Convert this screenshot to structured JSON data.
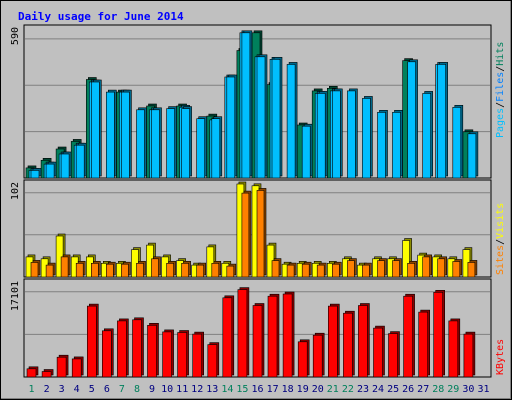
{
  "chart_data": [
    {
      "type": "bar",
      "title": "Daily usage for June 2014",
      "categories": [
        "1",
        "2",
        "3",
        "4",
        "5",
        "6",
        "7",
        "8",
        "9",
        "10",
        "11",
        "12",
        "13",
        "14",
        "15",
        "16",
        "17",
        "18",
        "19",
        "20",
        "21",
        "22",
        "23",
        "24",
        "25",
        "26",
        "27",
        "28",
        "29",
        "30",
        "31"
      ],
      "weekend_days": [
        "1",
        "7",
        "8",
        "14",
        "15",
        "21",
        "22",
        "28",
        "29"
      ],
      "ylabel_segments": [
        "Pages",
        "/",
        "Files",
        "/",
        "Hits"
      ],
      "ytick_label": "590",
      "ylim": [
        0,
        590
      ],
      "grid": true,
      "series": [
        {
          "name": "Hits",
          "color": "#00805c",
          "values": [
            40,
            70,
            115,
            145,
            390,
            0,
            340,
            0,
            285,
            0,
            285,
            0,
            245,
            0,
            505,
            575,
            370,
            0,
            210,
            345,
            355,
            0,
            0,
            0,
            0,
            465,
            0,
            0,
            0,
            183,
            0
          ]
        },
        {
          "name": "Files",
          "color": "#00bfff",
          "values": [
            30,
            55,
            95,
            130,
            380,
            0,
            340,
            0,
            270,
            0,
            280,
            0,
            230,
            400,
            575,
            480,
            470,
            0,
            0,
            335,
            345,
            0,
            0,
            0,
            0,
            0,
            0,
            450,
            0,
            0,
            0
          ]
        },
        {
          "name": "Pages",
          "color": "#00bfff",
          "values": [
            30,
            55,
            95,
            130,
            380,
            340,
            340,
            270,
            270,
            275,
            275,
            235,
            235,
            400,
            575,
            480,
            470,
            450,
            205,
            335,
            345,
            345,
            315,
            260,
            260,
            460,
            335,
            450,
            280,
            175,
            0
          ]
        }
      ]
    },
    {
      "type": "bar",
      "categories": [
        "1",
        "2",
        "3",
        "4",
        "5",
        "6",
        "7",
        "8",
        "9",
        "10",
        "11",
        "12",
        "13",
        "14",
        "15",
        "16",
        "17",
        "18",
        "19",
        "20",
        "21",
        "22",
        "23",
        "24",
        "25",
        "26",
        "27",
        "28",
        "29",
        "30",
        "31"
      ],
      "ylabel_segments": [
        "Sites",
        "/",
        "Visits"
      ],
      "ytick_label": "102",
      "ylim": [
        0,
        102
      ],
      "grid": true,
      "series": [
        {
          "name": "Visits",
          "color": "#ffff00",
          "values": [
            22,
            20,
            45,
            22,
            22,
            15,
            15,
            30,
            35,
            22,
            18,
            13,
            33,
            15,
            102,
            100,
            35,
            14,
            15,
            15,
            15,
            20,
            13,
            20,
            20,
            40,
            24,
            22,
            20,
            30,
            0
          ]
        },
        {
          "name": "Sites",
          "color": "#ff8000",
          "values": [
            16,
            13,
            22,
            15,
            15,
            14,
            14,
            15,
            20,
            15,
            15,
            13,
            15,
            12,
            92,
            95,
            18,
            13,
            14,
            13,
            14,
            18,
            13,
            18,
            18,
            15,
            22,
            20,
            17,
            16,
            0
          ]
        }
      ]
    },
    {
      "type": "bar",
      "categories": [
        "1",
        "2",
        "3",
        "4",
        "5",
        "6",
        "7",
        "8",
        "9",
        "10",
        "11",
        "12",
        "13",
        "14",
        "15",
        "16",
        "17",
        "18",
        "19",
        "20",
        "21",
        "22",
        "23",
        "24",
        "25",
        "26",
        "27",
        "28",
        "29",
        "30",
        "31"
      ],
      "ylabel_segments": [
        "KBytes"
      ],
      "ytick_label": "17101",
      "ylim": [
        0,
        17101
      ],
      "grid": true,
      "series": [
        {
          "name": "KBytes",
          "color": "#ff0000",
          "values": [
            1500,
            1000,
            3600,
            3300,
            12900,
            8400,
            10200,
            10400,
            9400,
            8200,
            8100,
            7800,
            5900,
            14400,
            15900,
            13000,
            14700,
            15100,
            6400,
            7600,
            12900,
            11600,
            13000,
            8900,
            7900,
            14700,
            11800,
            15400,
            10200,
            7800,
            0
          ]
        }
      ]
    }
  ]
}
